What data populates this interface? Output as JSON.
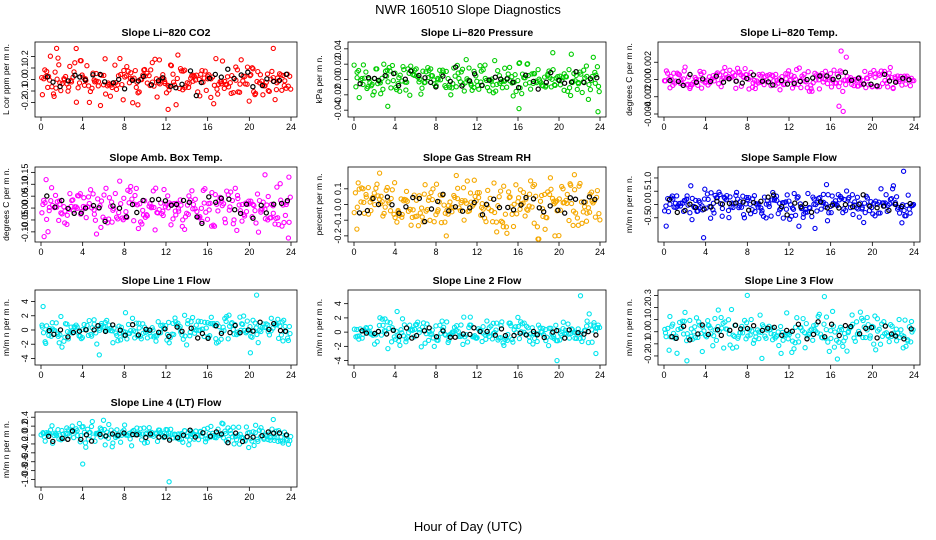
{
  "figure": {
    "title": "NWR  160510  Slope Diagnostics",
    "xlabel": "Hour of Day (UTC)"
  },
  "chart_data": [
    {
      "type": "scatter",
      "title": "Slope Li−820 CO2",
      "ylabel": "L cor ppm per m n.",
      "xlim": [
        0,
        24
      ],
      "ylim": [
        -0.3,
        0.3
      ],
      "xticks": [
        0,
        4,
        8,
        12,
        16,
        20,
        24
      ],
      "yticks": [
        -0.2,
        -0.1,
        0.0,
        0.1,
        0.2
      ],
      "ytick_labels": [
        "-0.2",
        "-0.1",
        "0.0",
        "0.1",
        "0.2"
      ],
      "color": "#ff0000",
      "spread": 0.09,
      "outliers": [
        [
          1.5,
          0.27
        ],
        [
          9.3,
          -0.22
        ],
        [
          12.2,
          -0.26
        ],
        [
          22.3,
          0.27
        ]
      ]
    },
    {
      "type": "scatter",
      "title": "Slope Li−820 Pressure",
      "ylabel": "kPa per m n.",
      "xlim": [
        0,
        24
      ],
      "ylim": [
        -0.045,
        0.045
      ],
      "xticks": [
        0,
        4,
        8,
        12,
        16,
        20,
        24
      ],
      "yticks": [
        -0.04,
        -0.02,
        0.0,
        0.02,
        0.04
      ],
      "ytick_labels": [
        "-0.04",
        "-0.02",
        "0.00",
        "0.02",
        "0.04"
      ],
      "color": "#00cc00",
      "spread": 0.011,
      "outliers": [
        [
          3.3,
          -0.035
        ],
        [
          16.1,
          -0.038
        ],
        [
          19.4,
          0.035
        ],
        [
          21.2,
          0.033
        ],
        [
          23.8,
          -0.042
        ]
      ]
    },
    {
      "type": "scatter",
      "title": "Slope Li−820 Temp.",
      "ylabel": "degrees C per m n.",
      "xlim": [
        0,
        24
      ],
      "ylim": [
        -0.004,
        0.004
      ],
      "xticks": [
        0,
        4,
        8,
        12,
        16,
        20,
        24
      ],
      "yticks": [
        -0.004,
        -0.002,
        0.0,
        0.002
      ],
      "ytick_labels": [
        "-0.004",
        "-0.002",
        "0.000",
        "0.002"
      ],
      "color": "#ff00ff",
      "spread": 0.0006,
      "outliers": [
        [
          17.0,
          0.0033
        ],
        [
          17.2,
          -0.0037
        ],
        [
          17.5,
          0.0026
        ],
        [
          16.8,
          -0.0031
        ]
      ]
    },
    {
      "type": "scatter",
      "title": "Slope Amb. Box Temp.",
      "ylabel": "degrees C per m n.",
      "xlim": [
        0,
        24
      ],
      "ylim": [
        -0.13,
        0.16
      ],
      "xticks": [
        0,
        4,
        8,
        12,
        16,
        20,
        24
      ],
      "yticks": [
        -0.1,
        -0.05,
        0.0,
        0.05,
        0.1,
        0.15
      ],
      "ytick_labels": [
        "-0.10",
        "-0.05",
        "0.00",
        "0.05",
        "0.10",
        "0.15"
      ],
      "color": "#ff00ff",
      "spread": 0.045,
      "outliers": [
        [
          0.3,
          -0.12
        ],
        [
          21.5,
          0.14
        ],
        [
          23.8,
          0.13
        ]
      ]
    },
    {
      "type": "scatter",
      "title": "Slope Gas Stream RH",
      "ylabel": "percent per m n.",
      "xlim": [
        0,
        24
      ],
      "ylim": [
        -0.22,
        0.22
      ],
      "xticks": [
        0,
        4,
        8,
        12,
        16,
        20,
        24
      ],
      "yticks": [
        -0.2,
        -0.1,
        0.0,
        0.1
      ],
      "ytick_labels": [
        "-0.2",
        "-0.1",
        "0.0",
        "0.1"
      ],
      "color": "#f5a800",
      "spread": 0.08,
      "outliers": [
        [
          2.5,
          0.2
        ],
        [
          9.0,
          -0.2
        ],
        [
          19.6,
          -0.2
        ],
        [
          21.5,
          0.19
        ]
      ]
    },
    {
      "type": "scatter",
      "title": "Slope Sample Flow",
      "ylabel": "m/m n per m n.",
      "xlim": [
        0,
        24
      ],
      "ylim": [
        -1.3,
        1.3
      ],
      "xticks": [
        0,
        4,
        8,
        12,
        16,
        20,
        24
      ],
      "yticks": [
        -0.5,
        0.0,
        0.5,
        1.0
      ],
      "ytick_labels": [
        "-0.5",
        "0.0",
        "0.5",
        "1.0"
      ],
      "color": "#0000ee",
      "spread": 0.28,
      "outliers": [
        [
          3.8,
          -1.25
        ],
        [
          15.6,
          0.75
        ],
        [
          23.0,
          1.25
        ],
        [
          14.5,
          -0.9
        ]
      ]
    },
    {
      "type": "scatter",
      "title": "Slope Line 1 Flow",
      "ylabel": "m/m n per m n.",
      "xlim": [
        0,
        24
      ],
      "ylim": [
        -4.5,
        5.2
      ],
      "xticks": [
        0,
        4,
        8,
        12,
        16,
        20,
        24
      ],
      "yticks": [
        -4,
        -2,
        0,
        2,
        4
      ],
      "ytick_labels": [
        "-4",
        "-2",
        "0",
        "2",
        "4"
      ],
      "color": "#00e5ee",
      "spread": 1.0,
      "outliers": [
        [
          20.7,
          4.9
        ],
        [
          0.2,
          3.3
        ],
        [
          5.6,
          -3.5
        ],
        [
          20.1,
          -3.2
        ]
      ]
    },
    {
      "type": "scatter",
      "title": "Slope Line 2 Flow",
      "ylabel": "m/m n per m n.",
      "xlim": [
        0,
        24
      ],
      "ylim": [
        -4.2,
        5.5
      ],
      "xticks": [
        0,
        4,
        8,
        12,
        16,
        20,
        24
      ],
      "yticks": [
        -4,
        -2,
        0,
        2,
        4
      ],
      "ytick_labels": [
        "-4",
        "-2",
        "0",
        "2",
        "4"
      ],
      "color": "#00e5ee",
      "spread": 0.9,
      "outliers": [
        [
          22.1,
          5.1
        ],
        [
          19.8,
          -4.0
        ],
        [
          23.6,
          -3.0
        ],
        [
          4.2,
          2.9
        ]
      ]
    },
    {
      "type": "scatter",
      "title": "Slope Line 3 Flow",
      "ylabel": "m/m n per m n.",
      "xlim": [
        0,
        24
      ],
      "ylim": [
        -0.25,
        0.32
      ],
      "xticks": [
        0,
        4,
        8,
        12,
        16,
        20,
        24
      ],
      "yticks": [
        -0.2,
        -0.1,
        0.0,
        0.1,
        0.2,
        0.3
      ],
      "ytick_labels": [
        "-0.2",
        "-0.1",
        "0.0",
        "0.1",
        "0.2",
        "0.3"
      ],
      "color": "#00e5ee",
      "spread": 0.075,
      "outliers": [
        [
          8.0,
          0.3
        ],
        [
          15.4,
          0.29
        ],
        [
          2.2,
          -0.24
        ],
        [
          9.4,
          -0.22
        ]
      ]
    },
    {
      "type": "scatter",
      "title": "Slope Line 4 (LT) Flow",
      "ylabel": "m/m n per m n.",
      "xlim": [
        0,
        24
      ],
      "ylim": [
        -1.1,
        0.45
      ],
      "xticks": [
        0,
        4,
        8,
        12,
        16,
        20,
        24
      ],
      "yticks": [
        -1.0,
        -0.8,
        -0.6,
        -0.4,
        -0.2,
        0.0,
        0.2,
        0.4
      ],
      "ytick_labels": [
        "-1.0",
        "-0.8",
        "-0.6",
        "-0.4",
        "-0.2",
        "0.0",
        "0.2",
        "0.4"
      ],
      "color": "#00e5ee",
      "spread": 0.11,
      "outliers": [
        [
          4.0,
          -0.65
        ],
        [
          12.3,
          -1.05
        ],
        [
          22.3,
          0.35
        ],
        [
          6.0,
          0.33
        ]
      ]
    }
  ]
}
